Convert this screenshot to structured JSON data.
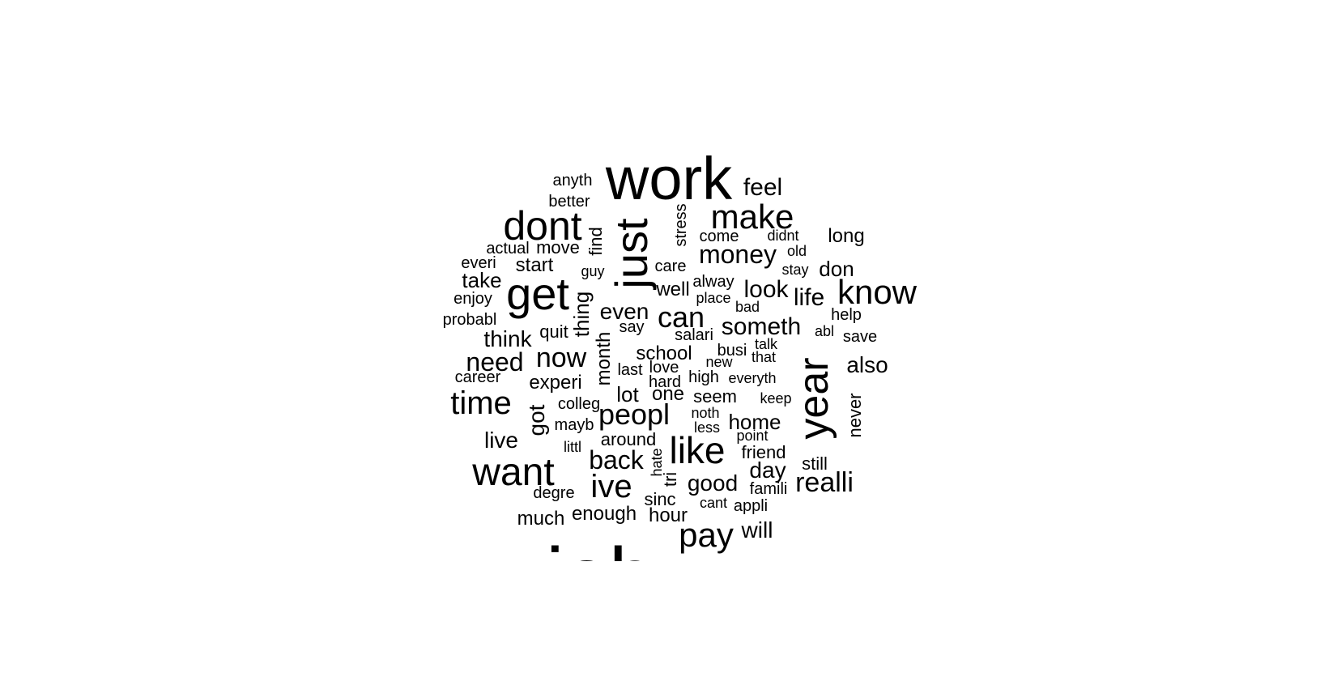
{
  "word_cloud": {
    "text_color": "#000000",
    "background": "#ffffff",
    "words": [
      {
        "text": "work",
        "vertical": false
      },
      {
        "text": "feel",
        "vertical": false
      },
      {
        "text": "anyth",
        "vertical": false
      },
      {
        "text": "better",
        "vertical": false
      },
      {
        "text": "dont",
        "vertical": false
      },
      {
        "text": "make",
        "vertical": false
      },
      {
        "text": "just",
        "vertical": true
      },
      {
        "text": "stress",
        "vertical": true
      },
      {
        "text": "come",
        "vertical": false
      },
      {
        "text": "didnt",
        "vertical": false
      },
      {
        "text": "long",
        "vertical": false
      },
      {
        "text": "old",
        "vertical": false
      },
      {
        "text": "actual",
        "vertical": false
      },
      {
        "text": "move",
        "vertical": false
      },
      {
        "text": "find",
        "vertical": true
      },
      {
        "text": "money",
        "vertical": false
      },
      {
        "text": "everi",
        "vertical": false
      },
      {
        "text": "start",
        "vertical": false
      },
      {
        "text": "guy",
        "vertical": false
      },
      {
        "text": "care",
        "vertical": false
      },
      {
        "text": "stay",
        "vertical": false
      },
      {
        "text": "don",
        "vertical": false
      },
      {
        "text": "take",
        "vertical": false
      },
      {
        "text": "get",
        "vertical": false
      },
      {
        "text": "well",
        "vertical": false
      },
      {
        "text": "alway",
        "vertical": false
      },
      {
        "text": "look",
        "vertical": false
      },
      {
        "text": "life",
        "vertical": false
      },
      {
        "text": "know",
        "vertical": false
      },
      {
        "text": "enjoy",
        "vertical": false
      },
      {
        "text": "thing",
        "vertical": true
      },
      {
        "text": "place",
        "vertical": false
      },
      {
        "text": "bad",
        "vertical": false
      },
      {
        "text": "probabl",
        "vertical": false
      },
      {
        "text": "even",
        "vertical": false
      },
      {
        "text": "can",
        "vertical": false
      },
      {
        "text": "say",
        "vertical": false
      },
      {
        "text": "someth",
        "vertical": false
      },
      {
        "text": "help",
        "vertical": false
      },
      {
        "text": "quit",
        "vertical": false
      },
      {
        "text": "salari",
        "vertical": false
      },
      {
        "text": "abl",
        "vertical": false
      },
      {
        "text": "save",
        "vertical": false
      },
      {
        "text": "think",
        "vertical": false
      },
      {
        "text": "month",
        "vertical": true
      },
      {
        "text": "school",
        "vertical": false
      },
      {
        "text": "busi",
        "vertical": false
      },
      {
        "text": "talk",
        "vertical": false
      },
      {
        "text": "need",
        "vertical": false
      },
      {
        "text": "now",
        "vertical": false
      },
      {
        "text": "new",
        "vertical": false
      },
      {
        "text": "that",
        "vertical": false
      },
      {
        "text": "year",
        "vertical": true
      },
      {
        "text": "also",
        "vertical": false
      },
      {
        "text": "last",
        "vertical": false
      },
      {
        "text": "love",
        "vertical": false
      },
      {
        "text": "career",
        "vertical": false
      },
      {
        "text": "high",
        "vertical": false
      },
      {
        "text": "everyth",
        "vertical": false
      },
      {
        "text": "hard",
        "vertical": false
      },
      {
        "text": "experi",
        "vertical": false
      },
      {
        "text": "lot",
        "vertical": false
      },
      {
        "text": "one",
        "vertical": false
      },
      {
        "text": "seem",
        "vertical": false
      },
      {
        "text": "keep",
        "vertical": false
      },
      {
        "text": "time",
        "vertical": false
      },
      {
        "text": "colleg",
        "vertical": false
      },
      {
        "text": "never",
        "vertical": true
      },
      {
        "text": "noth",
        "vertical": false
      },
      {
        "text": "got",
        "vertical": true
      },
      {
        "text": "peopl",
        "vertical": false
      },
      {
        "text": "home",
        "vertical": false
      },
      {
        "text": "mayb",
        "vertical": false
      },
      {
        "text": "less",
        "vertical": false
      },
      {
        "text": "point",
        "vertical": false
      },
      {
        "text": "live",
        "vertical": false
      },
      {
        "text": "around",
        "vertical": false
      },
      {
        "text": "like",
        "vertical": false
      },
      {
        "text": "littl",
        "vertical": false
      },
      {
        "text": "friend",
        "vertical": false
      },
      {
        "text": "hate",
        "vertical": true
      },
      {
        "text": "back",
        "vertical": false
      },
      {
        "text": "still",
        "vertical": false
      },
      {
        "text": "want",
        "vertical": false
      },
      {
        "text": "day",
        "vertical": false
      },
      {
        "text": "tri",
        "vertical": true
      },
      {
        "text": "realli",
        "vertical": false
      },
      {
        "text": "ive",
        "vertical": false
      },
      {
        "text": "good",
        "vertical": false
      },
      {
        "text": "famili",
        "vertical": false
      },
      {
        "text": "degre",
        "vertical": false
      },
      {
        "text": "sinc",
        "vertical": false
      },
      {
        "text": "cant",
        "vertical": false
      },
      {
        "text": "appli",
        "vertical": false
      },
      {
        "text": "much",
        "vertical": false
      },
      {
        "text": "enough",
        "vertical": false
      },
      {
        "text": "hour",
        "vertical": false
      },
      {
        "text": "pay",
        "vertical": false
      },
      {
        "text": "will",
        "vertical": false
      },
      {
        "text": "job",
        "vertical": false
      }
    ]
  }
}
